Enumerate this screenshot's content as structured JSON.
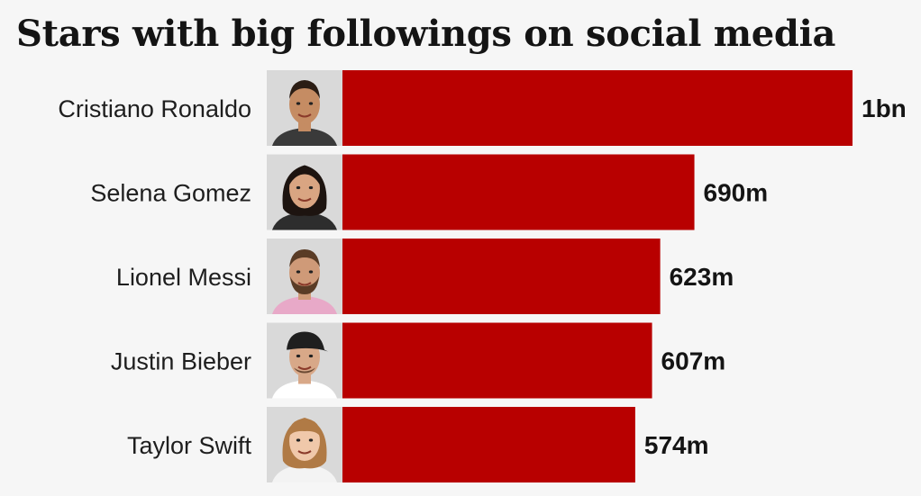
{
  "chart_data": {
    "type": "bar",
    "orientation": "horizontal",
    "title": "Stars with big followings on social media",
    "xlabel": "",
    "ylabel": "",
    "categories": [
      "Cristiano Ronaldo",
      "Selena Gomez",
      "Lionel Messi",
      "Justin Bieber",
      "Taylor Swift"
    ],
    "values": [
      1000,
      690,
      623,
      607,
      574
    ],
    "value_labels": [
      "1bn",
      "690m",
      "623m",
      "607m",
      "574m"
    ],
    "unit": "millions of followers",
    "xlim": [
      0,
      1000
    ],
    "grid": false,
    "legend": "none",
    "bar_color": "#b80000",
    "photos": [
      "portrait-cristiano-ronaldo",
      "portrait-selena-gomez",
      "portrait-lionel-messi",
      "portrait-justin-bieber",
      "portrait-taylor-swift"
    ]
  }
}
